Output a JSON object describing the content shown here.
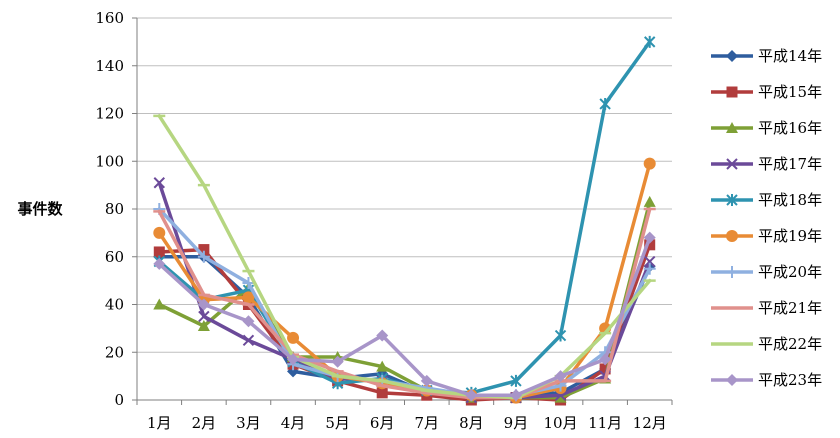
{
  "chart_data": {
    "type": "line",
    "title": "",
    "xlabel": "",
    "ylabel": "事件数",
    "ylim": [
      0,
      160
    ],
    "yticks": [
      0,
      20,
      40,
      60,
      80,
      100,
      120,
      140,
      160
    ],
    "grid": true,
    "legend_position": "right",
    "categories": [
      "1月",
      "2月",
      "3月",
      "4月",
      "5月",
      "6月",
      "7月",
      "8月",
      "9月",
      "10月",
      "11月",
      "12月"
    ],
    "series": [
      {
        "name": "平成14年",
        "color": "#2e5d9e",
        "marker": "diamond",
        "values": [
          60,
          60,
          43,
          12,
          9,
          11,
          3,
          2,
          2,
          3,
          13,
          56
        ]
      },
      {
        "name": "平成15年",
        "color": "#b13c3c",
        "marker": "square",
        "values": [
          62,
          63,
          40,
          15,
          8,
          3,
          2,
          0,
          1,
          0,
          13,
          65
        ]
      },
      {
        "name": "平成16年",
        "color": "#7ea036",
        "marker": "triangle",
        "values": [
          40,
          31,
          47,
          18,
          18,
          14,
          4,
          1,
          1,
          1,
          9,
          83
        ]
      },
      {
        "name": "平成17年",
        "color": "#6b4a99",
        "marker": "x",
        "values": [
          91,
          35,
          25,
          17,
          9,
          8,
          4,
          1,
          1,
          2,
          10,
          58
        ]
      },
      {
        "name": "平成18年",
        "color": "#2e93b0",
        "marker": "star",
        "values": [
          58,
          42,
          46,
          16,
          7,
          9,
          4,
          3,
          8,
          27,
          124,
          150
        ]
      },
      {
        "name": "平成19年",
        "color": "#e88b35",
        "marker": "circle",
        "values": [
          70,
          42,
          43,
          26,
          10,
          7,
          4,
          2,
          1,
          5,
          30,
          99
        ]
      },
      {
        "name": "平成20年",
        "color": "#8fb0e0",
        "marker": "plus",
        "values": [
          80,
          60,
          49,
          15,
          10,
          8,
          5,
          2,
          2,
          6,
          20,
          55
        ]
      },
      {
        "name": "平成21年",
        "color": "#e0908c",
        "marker": "dash",
        "values": [
          79,
          44,
          40,
          19,
          12,
          6,
          3,
          1,
          1,
          8,
          8,
          80
        ]
      },
      {
        "name": "平成22年",
        "color": "#b6d681",
        "marker": "dash",
        "values": [
          119,
          90,
          54,
          18,
          10,
          8,
          4,
          2,
          1,
          10,
          28,
          50
        ]
      },
      {
        "name": "平成23年",
        "color": "#a895c9",
        "marker": "diamond",
        "values": [
          57,
          40,
          33,
          17,
          16,
          27,
          8,
          2,
          2,
          10,
          17,
          68
        ]
      }
    ]
  }
}
